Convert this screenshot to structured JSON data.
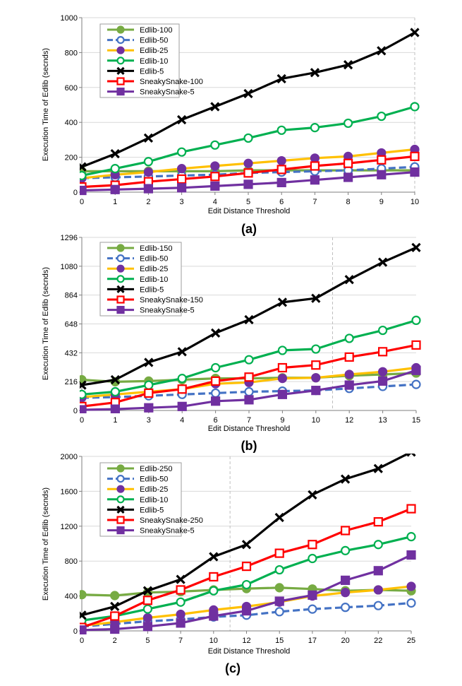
{
  "colors": {
    "edlib_large": "#77ab43",
    "edlib_50": "#4472c4",
    "edlib_25": "#ffc000",
    "edlib_25_marker": "#7030a0",
    "edlib_10": "#00b050",
    "edlib_5": "#000000",
    "sneaky_large": "#ff0000",
    "sneaky_5": "#7030a0"
  },
  "chart_data": [
    {
      "type": "line",
      "panel_label": "(a)",
      "xlabel": "Edit Distance Threshold",
      "ylabel": "Execution Time of Edlib (secnds)",
      "categories": [
        "0",
        "1",
        "2",
        "3",
        "4",
        "5",
        "6",
        "7",
        "8",
        "9",
        "10"
      ],
      "ylim": [
        0,
        1000
      ],
      "yticks": [
        "0",
        "200",
        "400",
        "600",
        "800",
        "1000"
      ],
      "ytick_values": [
        0,
        200,
        400,
        600,
        800,
        1000
      ],
      "vline_after_index": null,
      "legend_position": "top-left",
      "series": [
        {
          "name": "Edlib-100",
          "style": "edlib_large",
          "values": [
            120,
            120,
            120,
            120,
            120,
            125,
            125,
            125,
            125,
            125,
            125
          ]
        },
        {
          "name": "Edlib-50",
          "style": "edlib_50",
          "values": [
            80,
            85,
            90,
            95,
            100,
            110,
            115,
            120,
            125,
            135,
            145
          ]
        },
        {
          "name": "Edlib-25",
          "style": "edlib_25",
          "values": [
            80,
            100,
            115,
            135,
            150,
            165,
            180,
            195,
            205,
            225,
            245
          ]
        },
        {
          "name": "Edlib-10",
          "style": "edlib_10",
          "values": [
            95,
            135,
            175,
            230,
            270,
            310,
            355,
            370,
            395,
            435,
            490
          ]
        },
        {
          "name": "Edlib-5",
          "style": "edlib_5",
          "values": [
            145,
            220,
            310,
            415,
            490,
            565,
            650,
            685,
            730,
            810,
            915
          ]
        },
        {
          "name": "SneakySnake-100",
          "style": "sneaky_large",
          "values": [
            30,
            40,
            60,
            75,
            90,
            110,
            130,
            150,
            165,
            185,
            205
          ]
        },
        {
          "name": "SneakySnake-5",
          "style": "sneaky_5",
          "values": [
            10,
            15,
            20,
            25,
            35,
            45,
            55,
            70,
            85,
            100,
            115
          ]
        }
      ]
    },
    {
      "type": "line",
      "panel_label": "(b)",
      "xlabel": "Edit Distance Threshold",
      "ylabel": "Execution Time of Edlib (secnds)",
      "categories": [
        "0",
        "1",
        "3",
        "4",
        "6",
        "7",
        "9",
        "10",
        "12",
        "13",
        "15"
      ],
      "ylim": [
        0,
        1296
      ],
      "yticks": [
        "0",
        "216",
        "432",
        "648",
        "864",
        "1080",
        "1296"
      ],
      "ytick_values": [
        0,
        216,
        432,
        648,
        864,
        1080,
        1296
      ],
      "vline_after_index": 7,
      "legend_position": "top-left",
      "series": [
        {
          "name": "Edlib-150",
          "style": "edlib_large",
          "values": [
            230,
            215,
            220,
            230,
            240,
            240,
            245,
            245,
            260,
            270,
            280
          ]
        },
        {
          "name": "Edlib-50",
          "style": "edlib_50",
          "values": [
            95,
            100,
            110,
            120,
            130,
            140,
            145,
            150,
            165,
            180,
            195
          ]
        },
        {
          "name": "Edlib-25",
          "style": "edlib_25",
          "values": [
            100,
            120,
            140,
            160,
            200,
            210,
            240,
            245,
            270,
            290,
            320
          ]
        },
        {
          "name": "Edlib-10",
          "style": "edlib_10",
          "values": [
            120,
            140,
            190,
            240,
            320,
            380,
            450,
            460,
            540,
            600,
            675
          ]
        },
        {
          "name": "Edlib-5",
          "style": "edlib_5",
          "values": [
            190,
            230,
            360,
            440,
            580,
            680,
            810,
            840,
            980,
            1110,
            1220
          ]
        },
        {
          "name": "SneakySnake-150",
          "style": "sneaky_large",
          "values": [
            30,
            60,
            130,
            160,
            220,
            250,
            320,
            340,
            400,
            440,
            490
          ]
        },
        {
          "name": "SneakySnake-5",
          "style": "sneaky_5",
          "values": [
            5,
            10,
            20,
            30,
            70,
            80,
            120,
            150,
            190,
            220,
            300
          ]
        }
      ]
    },
    {
      "type": "line",
      "panel_label": "(c)",
      "xlabel": "Edit Distance Threshold",
      "ylabel": "Execution Time of Edlib (secnds)",
      "categories": [
        "0",
        "2",
        "5",
        "7",
        "10",
        "12",
        "15",
        "17",
        "20",
        "22",
        "25"
      ],
      "ylim": [
        0,
        2000
      ],
      "yticks": [
        "0",
        "400",
        "800",
        "1200",
        "1600",
        "2000"
      ],
      "ytick_values": [
        0,
        400,
        800,
        1200,
        1600,
        2000
      ],
      "vline_after_index": 4,
      "legend_position": "top-left",
      "series": [
        {
          "name": "Edlib-250",
          "style": "edlib_large",
          "values": [
            415,
            405,
            440,
            450,
            470,
            485,
            495,
            480,
            460,
            470,
            460
          ]
        },
        {
          "name": "Edlib-50",
          "style": "edlib_50",
          "values": [
            50,
            80,
            110,
            130,
            160,
            180,
            220,
            250,
            270,
            290,
            320
          ]
        },
        {
          "name": "Edlib-25",
          "style": "edlib_25",
          "values": [
            60,
            100,
            150,
            190,
            240,
            280,
            330,
            400,
            440,
            470,
            510
          ]
        },
        {
          "name": "Edlib-10",
          "style": "edlib_10",
          "values": [
            120,
            170,
            250,
            330,
            460,
            530,
            700,
            830,
            920,
            990,
            1080
          ]
        },
        {
          "name": "Edlib-5",
          "style": "edlib_5",
          "values": [
            180,
            280,
            460,
            590,
            850,
            990,
            1300,
            1560,
            1740,
            1860,
            2050
          ]
        },
        {
          "name": "SneakySnake-250",
          "style": "sneaky_large",
          "values": [
            40,
            170,
            350,
            470,
            620,
            740,
            890,
            990,
            1150,
            1250,
            1400
          ]
        },
        {
          "name": "SneakySnake-5",
          "style": "sneaky_5",
          "values": [
            10,
            20,
            50,
            90,
            170,
            230,
            340,
            410,
            580,
            690,
            870
          ]
        }
      ]
    }
  ]
}
